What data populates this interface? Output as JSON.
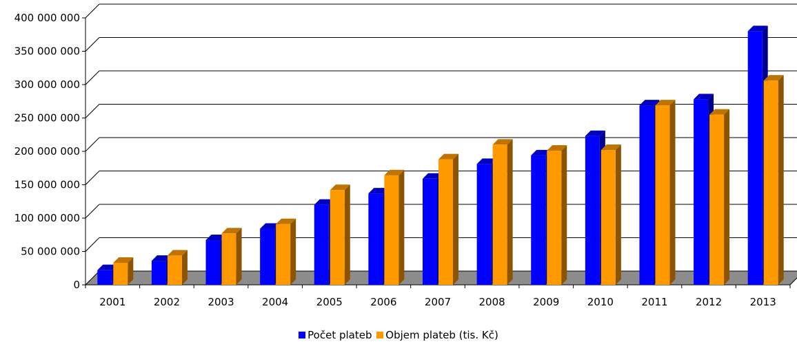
{
  "chart_data": {
    "type": "bar",
    "categories": [
      "2001",
      "2002",
      "2003",
      "2004",
      "2005",
      "2006",
      "2007",
      "2008",
      "2009",
      "2010",
      "2011",
      "2012",
      "2013"
    ],
    "series": [
      {
        "name": "Počet plateb",
        "color": "#0000ff",
        "values": [
          22000000,
          36000000,
          67000000,
          84000000,
          120000000,
          137000000,
          159000000,
          181000000,
          194000000,
          223000000,
          269000000,
          278000000,
          380000000
        ]
      },
      {
        "name": "Objem plateb (tis. Kč)",
        "color": "#ff9900",
        "values": [
          33000000,
          44000000,
          77000000,
          91000000,
          142000000,
          164000000,
          188000000,
          210000000,
          201000000,
          202000000,
          269000000,
          255000000,
          306000000
        ]
      }
    ],
    "ylim": [
      0,
      400000000
    ],
    "y_ticks": [
      {
        "value": 0,
        "label": "0"
      },
      {
        "value": 50000000,
        "label": "50 000 000"
      },
      {
        "value": 100000000,
        "label": "100 000 000"
      },
      {
        "value": 150000000,
        "label": "150 000 000"
      },
      {
        "value": 200000000,
        "label": "200 000 000"
      },
      {
        "value": 250000000,
        "label": "250 000 000"
      },
      {
        "value": 300000000,
        "label": "300 000 000"
      },
      {
        "value": 350000000,
        "label": "350 000 000"
      },
      {
        "value": 400000000,
        "label": "400 000 000"
      }
    ],
    "grid": true,
    "style": "3d",
    "legend_position": "bottom"
  }
}
